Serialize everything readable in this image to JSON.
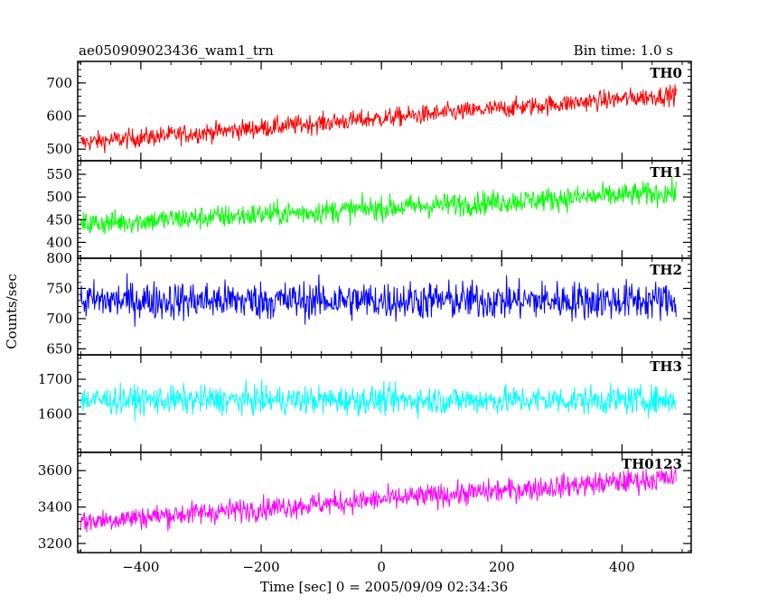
{
  "header": {
    "title": "ae050909023436_wam1_trn",
    "bin_time": "Bin time: 1.0 s"
  },
  "axes": {
    "ylabel": "Counts/sec",
    "xlabel": "Time [sec] 0 = 2005/09/09 02:34:36"
  },
  "chart_data": {
    "type": "line",
    "title": "ae050909023436_wam1_trn",
    "subtitle": "Bin time: 1.0 s",
    "xlabel": "Time [sec] 0 = 2005/09/09 02:34:36",
    "ylabel": "Counts/sec",
    "xlim": [
      -505,
      515
    ],
    "x_ticks": [
      -400,
      -200,
      0,
      200,
      400
    ],
    "x_step": 1.0,
    "x_range_data": [
      -500,
      490
    ],
    "panels": [
      {
        "name": "TH0",
        "color": "#ff0000",
        "ylim": [
          465,
          765
        ],
        "y_ticks": [
          500,
          600,
          700
        ],
        "trend_start": 520,
        "trend_end": 665,
        "noise_amplitude": 50
      },
      {
        "name": "TH1",
        "color": "#00ff00",
        "ylim": [
          365,
          580
        ],
        "y_ticks": [
          400,
          450,
          500,
          550
        ],
        "trend_start": 440,
        "trend_end": 510,
        "noise_amplitude": 45
      },
      {
        "name": "TH2",
        "color": "#0000ff",
        "ylim": [
          640,
          800
        ],
        "y_ticks": [
          650,
          700,
          750,
          800
        ],
        "trend_start": 730,
        "trend_end": 730,
        "noise_amplitude": 55
      },
      {
        "name": "TH3",
        "color": "#00ffff",
        "ylim": [
          1490,
          1770
        ],
        "y_ticks": [
          1600,
          1700
        ],
        "trend_start": 1640,
        "trend_end": 1640,
        "noise_amplitude": 70
      },
      {
        "name": "TH0123",
        "color": "#ff00ff",
        "ylim": [
          3150,
          3700
        ],
        "y_ticks": [
          3200,
          3400,
          3600
        ],
        "trend_start": 3320,
        "trend_end": 3560,
        "noise_amplitude": 110
      }
    ]
  }
}
